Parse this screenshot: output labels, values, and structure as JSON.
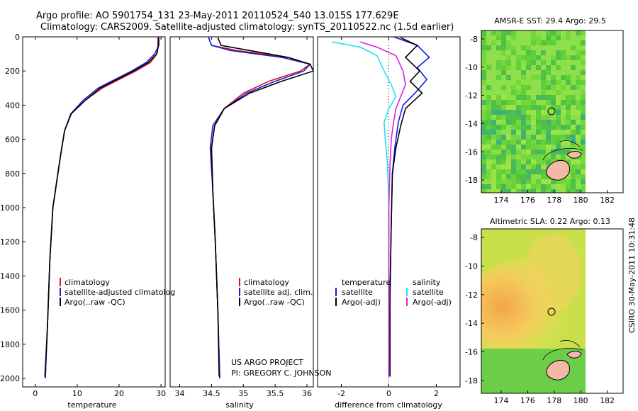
{
  "title_line1": "Argo profile: AO 5901754_131 23-May-2011 20110524_540 13.015S 177.629E",
  "title_line2": "Climatology: CARS2009. Satellite-adjusted climatology: synTS_20110522.nc (1.5d earlier)",
  "side_label": "CSIRO 30-May-2011 10:31:48",
  "project_line1": "US ARGO PROJECT",
  "project_line2": "PI: GREGORY C. JOHNSON",
  "colors": {
    "climatology": "#e01010",
    "satellite": "#1020e0",
    "argo": "#000000",
    "sat_salinity": "#20e0f0",
    "argo_salinity": "#e020e0"
  },
  "chart_data": [
    {
      "type": "line",
      "id": "temperature",
      "xlabel": "temperature",
      "ylabel": "",
      "xlim": [
        -3,
        31
      ],
      "ylim": [
        2050,
        0
      ],
      "xticks": [
        "0",
        "10",
        "20",
        "30"
      ],
      "yticks": [
        "0",
        "200",
        "400",
        "600",
        "800",
        "1000",
        "1200",
        "1400",
        "1600",
        "1800",
        "2000"
      ],
      "legend": [
        "climatology",
        "satellite-adjusted climatolog",
        "Argo(..raw -QC)"
      ],
      "series": [
        {
          "name": "climatology",
          "color_key": "climatology",
          "x": [
            29.3,
            29.3,
            29.0,
            27.5,
            24.0,
            20.0,
            16.0,
            12.0,
            8.5,
            7.0,
            6.0,
            4.2,
            3.5,
            2.9,
            2.4
          ],
          "y": [
            0,
            50,
            100,
            150,
            200,
            250,
            300,
            370,
            450,
            550,
            700,
            1000,
            1300,
            1700,
            2000
          ]
        },
        {
          "name": "satellite-adjusted climatology",
          "color_key": "satellite",
          "x": [
            29.5,
            29.5,
            28.5,
            26.5,
            23.0,
            19.0,
            15.0,
            11.5,
            8.5,
            7.0,
            6.0,
            4.2,
            3.5,
            2.9,
            2.4
          ],
          "y": [
            0,
            50,
            100,
            150,
            200,
            250,
            300,
            370,
            450,
            550,
            700,
            1000,
            1300,
            1700,
            2000
          ]
        },
        {
          "name": "Argo",
          "color_key": "argo",
          "x": [
            29.4,
            29.4,
            29.0,
            27.0,
            23.5,
            19.5,
            15.5,
            12.0,
            8.6,
            7.0,
            6.0,
            4.2,
            3.5,
            2.9,
            2.3
          ],
          "y": [
            5,
            50,
            100,
            150,
            200,
            250,
            300,
            370,
            450,
            550,
            700,
            1000,
            1300,
            1700,
            1990
          ]
        }
      ]
    },
    {
      "type": "line",
      "id": "salinity",
      "xlabel": "salinity",
      "xlim": [
        33.85,
        36.1
      ],
      "ylim": [
        2050,
        0
      ],
      "xticks": [
        "34",
        "34.5",
        "35",
        "35.5",
        "36"
      ],
      "legend": [
        "climatology",
        "satellite adj. clim.",
        "Argo(..raw -QC)"
      ],
      "series": [
        {
          "name": "climatology",
          "color_key": "climatology",
          "x": [
            34.45,
            34.5,
            34.9,
            35.7,
            36.05,
            35.9,
            35.4,
            35.0,
            34.7,
            34.55,
            34.5,
            34.52,
            34.56,
            34.6,
            34.63
          ],
          "y": [
            0,
            50,
            80,
            120,
            160,
            200,
            260,
            330,
            420,
            520,
            650,
            900,
            1200,
            1600,
            2000
          ]
        },
        {
          "name": "satellite adj. clim.",
          "color_key": "satellite",
          "x": [
            34.45,
            34.5,
            34.8,
            35.6,
            36.05,
            35.95,
            35.5,
            35.05,
            34.7,
            34.52,
            34.48,
            34.52,
            34.56,
            34.6,
            34.63
          ],
          "y": [
            0,
            50,
            80,
            120,
            160,
            200,
            260,
            330,
            420,
            520,
            650,
            900,
            1200,
            1600,
            2000
          ]
        },
        {
          "name": "Argo",
          "color_key": "argo",
          "x": [
            34.6,
            34.65,
            35.1,
            35.7,
            36.05,
            36.1,
            35.6,
            35.1,
            34.7,
            34.55,
            34.5,
            34.52,
            34.56,
            34.6,
            34.62
          ],
          "y": [
            5,
            50,
            80,
            120,
            160,
            200,
            260,
            330,
            420,
            520,
            650,
            900,
            1200,
            1600,
            1990
          ]
        }
      ]
    },
    {
      "type": "line",
      "id": "difference",
      "xlabel": "difference from climatology",
      "xlim": [
        -3,
        3
      ],
      "ylim": [
        2050,
        0
      ],
      "xticks": [
        "-2",
        "0",
        "2"
      ],
      "legend_left_title": "temperature",
      "legend_left": [
        "satellite",
        "Argo(-adj)"
      ],
      "legend_right_title": "salinity",
      "legend_right": [
        "satellite",
        "Argo(-adj)"
      ],
      "series": [
        {
          "name": "temperature satellite",
          "color_key": "satellite",
          "x": [
            0.2,
            1.2,
            1.7,
            1.2,
            1.6,
            1.1,
            0.6,
            0.4,
            0.25,
            0.15,
            0.1,
            0.05,
            0.0
          ],
          "y": [
            0,
            50,
            120,
            180,
            250,
            330,
            400,
            500,
            650,
            800,
            1100,
            1500,
            1990
          ]
        },
        {
          "name": "temperature Argo(-adj)",
          "color_key": "argo",
          "x": [
            0.5,
            1.2,
            0.7,
            1.3,
            0.9,
            1.4,
            0.7,
            0.5,
            0.3,
            0.15,
            0.1,
            0.05,
            0.05
          ],
          "y": [
            5,
            50,
            120,
            200,
            260,
            330,
            420,
            520,
            650,
            800,
            1100,
            1500,
            1990
          ]
        },
        {
          "name": "salinity satellite",
          "color_key": "sat_salinity",
          "x": [
            -2.4,
            -1.2,
            -0.5,
            -0.2,
            0.1,
            0.3,
            0.0,
            -0.2,
            -0.15,
            -0.05,
            0.0,
            0.0,
            0.0
          ],
          "y": [
            30,
            60,
            110,
            200,
            280,
            350,
            420,
            500,
            600,
            750,
            1000,
            1500,
            1990
          ]
        },
        {
          "name": "salinity Argo(-adj)",
          "color_key": "argo_salinity",
          "x": [
            -1.2,
            -0.5,
            0.3,
            0.6,
            0.7,
            0.5,
            0.3,
            0.2,
            0.1,
            0.05,
            0.0,
            0.0,
            0.0
          ],
          "y": [
            30,
            60,
            110,
            200,
            280,
            350,
            420,
            500,
            600,
            750,
            1000,
            1500,
            1990
          ]
        }
      ]
    },
    {
      "type": "heatmap",
      "id": "sst_map",
      "title": "AMSR-E SST: 29.4 Argo: 29.5",
      "xlim": [
        172.5,
        183.2
      ],
      "ylim": [
        -18.9,
        -7.4
      ],
      "xticks": [
        "174",
        "176",
        "178",
        "180",
        "182"
      ],
      "yticks": [
        "-8",
        "-10",
        "-12",
        "-14",
        "-16",
        "-18"
      ],
      "argo_marker": {
        "lon": 177.629,
        "lat": -13.015
      }
    },
    {
      "type": "heatmap",
      "id": "sla_map",
      "title": "Altimetric SLA: 0.22 Argo: 0.13",
      "xlim": [
        172.5,
        183.2
      ],
      "ylim": [
        -18.9,
        -7.4
      ],
      "xticks": [
        "174",
        "176",
        "178",
        "180",
        "182"
      ],
      "yticks": [
        "-8",
        "-10",
        "-12",
        "-14",
        "-16",
        "-18"
      ],
      "argo_marker": {
        "lon": 177.629,
        "lat": -13.015
      }
    }
  ]
}
